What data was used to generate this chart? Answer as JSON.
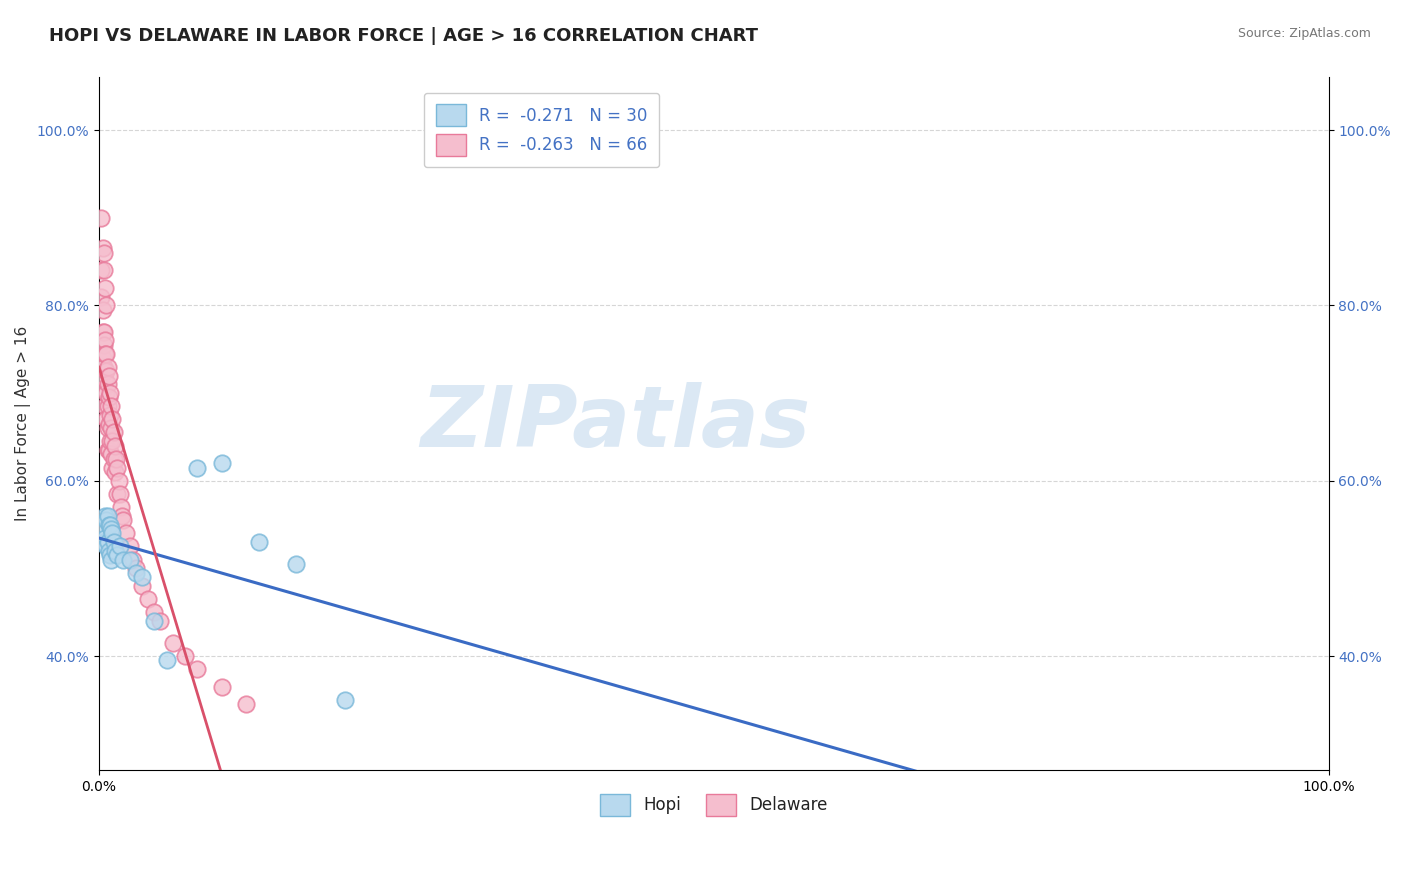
{
  "title": "HOPI VS DELAWARE IN LABOR FORCE | AGE > 16 CORRELATION CHART",
  "source": "Source: ZipAtlas.com",
  "ylabel": "In Labor Force | Age > 16",
  "xmin": 0.0,
  "xmax": 1.0,
  "ymin": 0.27,
  "ymax": 1.06,
  "yticks": [
    0.4,
    0.6,
    0.8,
    1.0
  ],
  "ytick_labels": [
    "40.0%",
    "60.0%",
    "80.0%",
    "100.0%"
  ],
  "xtick_labels": [
    "0.0%",
    "100.0%"
  ],
  "hopi_R": -0.271,
  "hopi_N": 30,
  "delaware_R": -0.263,
  "delaware_N": 66,
  "hopi_color": "#7ab8d9",
  "hopi_fill": "#b8d9ee",
  "delaware_color": "#e87a9a",
  "delaware_fill": "#f5bece",
  "hopi_line_color": "#3a6bc4",
  "delaware_line_color": "#d9506a",
  "watermark_text": "ZIPatlas",
  "watermark_color": "#cddff0",
  "hopi_points_x": [
    0.003,
    0.004,
    0.005,
    0.005,
    0.006,
    0.006,
    0.007,
    0.007,
    0.008,
    0.008,
    0.009,
    0.009,
    0.01,
    0.01,
    0.011,
    0.012,
    0.013,
    0.015,
    0.017,
    0.02,
    0.025,
    0.03,
    0.035,
    0.045,
    0.055,
    0.08,
    0.1,
    0.13,
    0.16,
    0.2
  ],
  "hopi_points_y": [
    0.545,
    0.53,
    0.56,
    0.535,
    0.555,
    0.525,
    0.56,
    0.53,
    0.55,
    0.52,
    0.55,
    0.515,
    0.545,
    0.51,
    0.54,
    0.53,
    0.52,
    0.515,
    0.525,
    0.51,
    0.51,
    0.495,
    0.49,
    0.44,
    0.395,
    0.615,
    0.62,
    0.53,
    0.505,
    0.35
  ],
  "delaware_points_x": [
    0.002,
    0.002,
    0.003,
    0.003,
    0.003,
    0.004,
    0.004,
    0.004,
    0.004,
    0.005,
    0.005,
    0.005,
    0.005,
    0.006,
    0.006,
    0.006,
    0.006,
    0.007,
    0.007,
    0.007,
    0.007,
    0.007,
    0.008,
    0.008,
    0.008,
    0.008,
    0.009,
    0.009,
    0.009,
    0.01,
    0.01,
    0.01,
    0.011,
    0.011,
    0.011,
    0.012,
    0.012,
    0.013,
    0.013,
    0.014,
    0.015,
    0.015,
    0.016,
    0.017,
    0.018,
    0.019,
    0.02,
    0.022,
    0.025,
    0.028,
    0.03,
    0.035,
    0.04,
    0.045,
    0.05,
    0.06,
    0.07,
    0.08,
    0.1,
    0.12,
    0.002,
    0.003,
    0.004,
    0.004,
    0.005,
    0.006
  ],
  "delaware_points_y": [
    0.84,
    0.81,
    0.795,
    0.77,
    0.74,
    0.77,
    0.755,
    0.73,
    0.705,
    0.76,
    0.745,
    0.715,
    0.685,
    0.745,
    0.725,
    0.7,
    0.67,
    0.73,
    0.71,
    0.685,
    0.66,
    0.635,
    0.72,
    0.695,
    0.665,
    0.635,
    0.7,
    0.675,
    0.645,
    0.685,
    0.66,
    0.63,
    0.67,
    0.645,
    0.615,
    0.655,
    0.625,
    0.64,
    0.61,
    0.625,
    0.615,
    0.585,
    0.6,
    0.585,
    0.57,
    0.56,
    0.555,
    0.54,
    0.525,
    0.51,
    0.5,
    0.48,
    0.465,
    0.45,
    0.44,
    0.415,
    0.4,
    0.385,
    0.365,
    0.345,
    0.9,
    0.865,
    0.86,
    0.84,
    0.82,
    0.8
  ],
  "background_color": "#ffffff",
  "grid_color": "#cccccc",
  "title_fontsize": 13,
  "axis_label_fontsize": 11,
  "tick_fontsize": 10,
  "legend_fontsize": 12,
  "source_fontsize": 9
}
